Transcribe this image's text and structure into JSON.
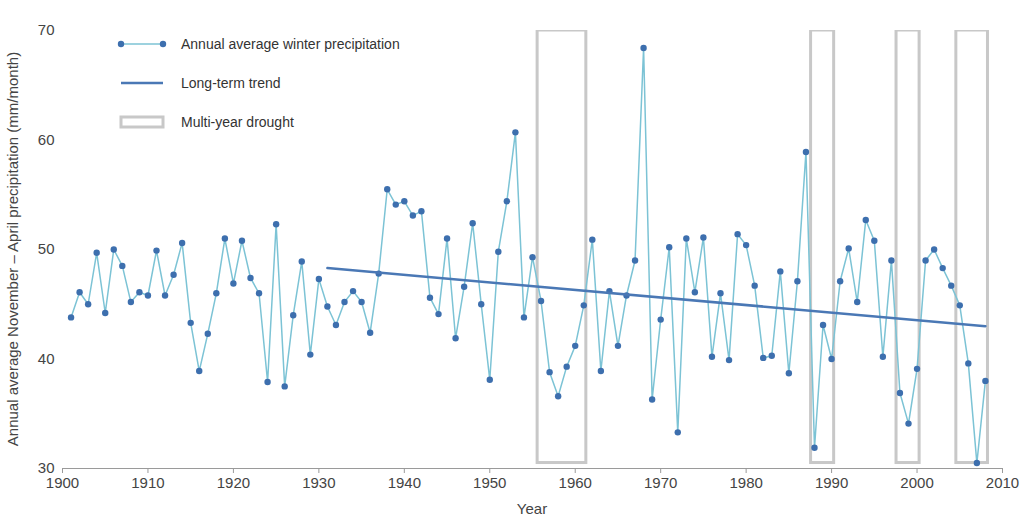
{
  "chart_data": {
    "type": "line",
    "xlabel": "Year",
    "ylabel": "Annual average November – April precipitation (mm/month)",
    "xlim": [
      1900,
      2010
    ],
    "xticks": [
      1900,
      1910,
      1920,
      1930,
      1940,
      1950,
      1960,
      1970,
      1980,
      1990,
      2000,
      2010
    ],
    "ylim": [
      30,
      70
    ],
    "yticks": [
      30,
      40,
      50,
      60,
      70
    ],
    "grid": false,
    "legend": "upper left",
    "x": [
      1901,
      1902,
      1903,
      1904,
      1905,
      1906,
      1907,
      1908,
      1909,
      1910,
      1911,
      1912,
      1913,
      1914,
      1915,
      1916,
      1917,
      1918,
      1919,
      1920,
      1921,
      1922,
      1923,
      1924,
      1925,
      1926,
      1927,
      1928,
      1929,
      1930,
      1931,
      1932,
      1933,
      1934,
      1935,
      1936,
      1937,
      1938,
      1939,
      1940,
      1941,
      1942,
      1943,
      1944,
      1945,
      1946,
      1947,
      1948,
      1949,
      1950,
      1951,
      1952,
      1953,
      1954,
      1955,
      1956,
      1957,
      1958,
      1959,
      1960,
      1961,
      1962,
      1963,
      1964,
      1965,
      1966,
      1967,
      1968,
      1969,
      1970,
      1971,
      1972,
      1973,
      1974,
      1975,
      1976,
      1977,
      1978,
      1979,
      1980,
      1981,
      1982,
      1983,
      1984,
      1985,
      1986,
      1987,
      1988,
      1989,
      1990,
      1991,
      1992,
      1993,
      1994,
      1995,
      1996,
      1997,
      1998,
      1999,
      2000,
      2001,
      2002,
      2003,
      2004,
      2005,
      2006,
      2007,
      2008
    ],
    "series": [
      {
        "name": "Annual average winter precipitation",
        "type": "line",
        "color": "#7cc3d5",
        "marker": "circle",
        "values": [
          43.8,
          46.1,
          45.0,
          49.7,
          44.2,
          50.0,
          48.5,
          45.2,
          46.1,
          45.8,
          49.9,
          45.8,
          47.7,
          50.6,
          43.3,
          38.9,
          42.3,
          46.0,
          51.0,
          46.9,
          50.8,
          47.4,
          46.0,
          37.9,
          52.3,
          37.5,
          44.0,
          48.9,
          40.4,
          47.3,
          44.8,
          43.1,
          45.2,
          46.2,
          45.2,
          42.4,
          47.8,
          55.5,
          54.1,
          54.4,
          53.1,
          53.5,
          45.6,
          44.1,
          51.0,
          41.9,
          46.6,
          52.4,
          45.0,
          38.1,
          49.8,
          54.4,
          60.7,
          43.8,
          49.3,
          45.3,
          38.8,
          36.6,
          39.3,
          41.2,
          44.9,
          50.9,
          38.9,
          46.2,
          41.2,
          45.8,
          49.0,
          68.4,
          36.3,
          43.6,
          50.2,
          33.3,
          51.0,
          46.1,
          51.1,
          40.2,
          46.0,
          39.9,
          51.4,
          50.4,
          46.7,
          40.1,
          40.3,
          48.0,
          38.7,
          47.1,
          58.9,
          31.9,
          43.1,
          40.0,
          47.1,
          50.1,
          45.2,
          52.7,
          50.8,
          40.2,
          49.0,
          36.9,
          34.1,
          39.1,
          49.0,
          50.0,
          48.3,
          46.7,
          44.9,
          39.6,
          30.5,
          38.0
        ]
      },
      {
        "name": "Long-term trend",
        "type": "line",
        "color": "#4a78b5",
        "line_style": "solid",
        "x": [
          1931,
          2008
        ],
        "values": [
          48.3,
          43.0
        ]
      }
    ],
    "droughts": {
      "name": "Multi-year drought",
      "color": "#c8c8c8",
      "periods": [
        {
          "start": 1955.6,
          "end": 1961.3,
          "low": 30.5,
          "high": 70
        },
        {
          "start": 1987.6,
          "end": 1990.3,
          "low": 30.5,
          "high": 70
        },
        {
          "start": 1997.6,
          "end": 2000.3,
          "low": 30.5,
          "high": 70
        },
        {
          "start": 2004.6,
          "end": 2008.3,
          "low": 30.5,
          "high": 70
        }
      ]
    }
  }
}
